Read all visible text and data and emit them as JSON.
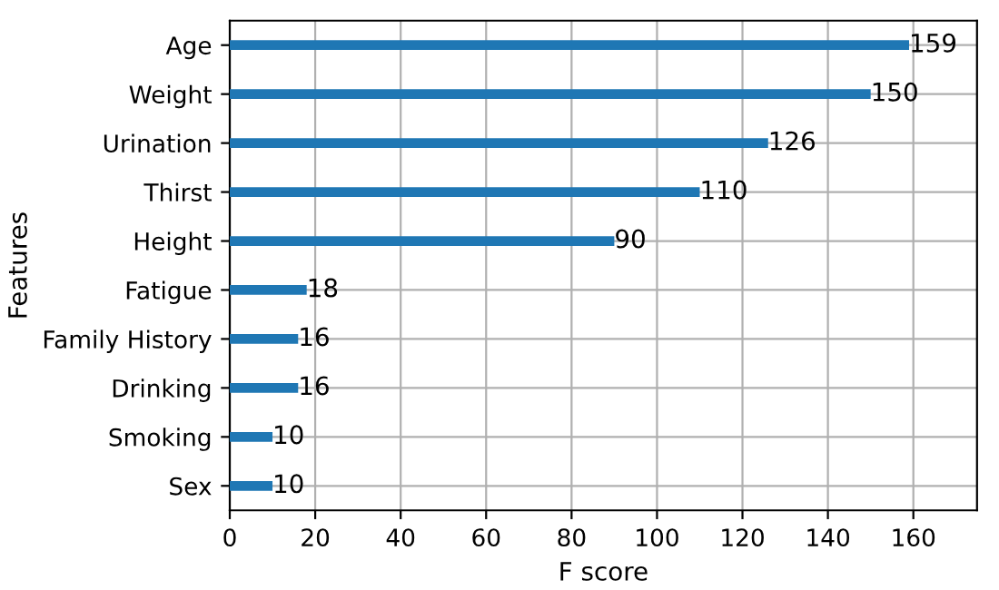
{
  "chart_data": {
    "type": "bar",
    "orientation": "horizontal",
    "xlabel": "F score",
    "ylabel": "Features",
    "categories": [
      "Age",
      "Weight",
      "Urination",
      "Thirst",
      "Height",
      "Fatigue",
      "Family History",
      "Drinking",
      "Smoking",
      "Sex"
    ],
    "values": [
      159,
      150,
      126,
      110,
      90,
      18,
      16,
      16,
      10,
      10
    ],
    "color": "#1f77b4",
    "data_labels": true,
    "grid": true,
    "xlim": [
      0,
      174.9
    ],
    "xticks": [
      0,
      20,
      40,
      60,
      80,
      100,
      120,
      140,
      160
    ]
  }
}
